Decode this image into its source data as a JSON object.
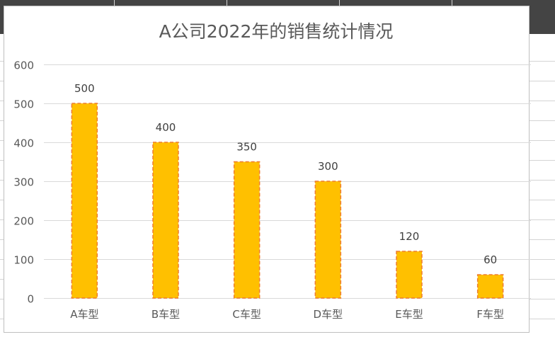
{
  "chart_data": {
    "type": "bar",
    "title": "A公司2022年的销售统计情况",
    "categories": [
      "A车型",
      "B车型",
      "C车型",
      "D车型",
      "E车型",
      "F车型"
    ],
    "values": [
      500,
      400,
      350,
      300,
      120,
      60
    ],
    "data_labels": [
      "500",
      "400",
      "350",
      "300",
      "120",
      "60"
    ],
    "ylim": [
      0,
      600
    ],
    "yticks": [
      "0",
      "100",
      "200",
      "300",
      "400",
      "500",
      "600"
    ],
    "xlabel": "",
    "ylabel": "",
    "grid": true,
    "legend": "none",
    "colors": {
      "bar_fill": "#FFC000",
      "bar_border": "#ED7D31",
      "grid": "#D9D9D9",
      "text": "#595959"
    }
  }
}
